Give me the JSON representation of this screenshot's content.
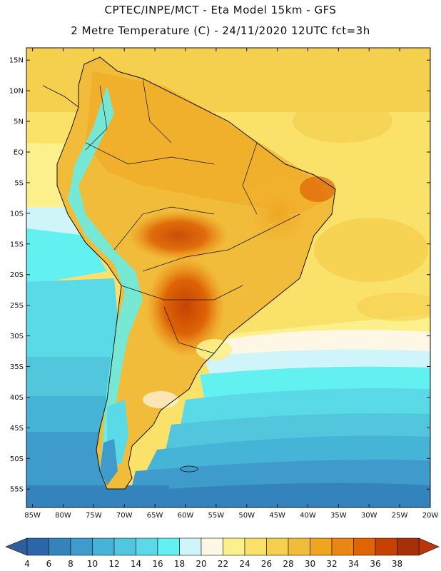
{
  "header": {
    "line1": "CPTEC/INPE/MCT  -   Eta Model 15km  -  GFS",
    "line2": "2 Metre Temperature (C)  -  24/11/2020 12UTC fct=3h"
  },
  "map": {
    "lon_range": [
      -86,
      -20
    ],
    "lat_range": [
      -58,
      17
    ],
    "lat_ticks": [
      {
        "lat": 15,
        "label": "15N"
      },
      {
        "lat": 10,
        "label": "10N"
      },
      {
        "lat": 5,
        "label": "5N"
      },
      {
        "lat": 0,
        "label": "EQ"
      },
      {
        "lat": -5,
        "label": "5S"
      },
      {
        "lat": -10,
        "label": "10S"
      },
      {
        "lat": -15,
        "label": "15S"
      },
      {
        "lat": -20,
        "label": "20S"
      },
      {
        "lat": -25,
        "label": "25S"
      },
      {
        "lat": -30,
        "label": "30S"
      },
      {
        "lat": -35,
        "label": "35S"
      },
      {
        "lat": -40,
        "label": "40S"
      },
      {
        "lat": -45,
        "label": "45S"
      },
      {
        "lat": -50,
        "label": "50S"
      },
      {
        "lat": -55,
        "label": "55S"
      }
    ],
    "lon_ticks": [
      {
        "lon": -85,
        "label": "85W"
      },
      {
        "lon": -80,
        "label": "80W"
      },
      {
        "lon": -75,
        "label": "75W"
      },
      {
        "lon": -70,
        "label": "70W"
      },
      {
        "lon": -65,
        "label": "65W"
      },
      {
        "lon": -60,
        "label": "60W"
      },
      {
        "lon": -55,
        "label": "55W"
      },
      {
        "lon": -50,
        "label": "50W"
      },
      {
        "lon": -45,
        "label": "45W"
      },
      {
        "lon": -40,
        "label": "40W"
      },
      {
        "lon": -35,
        "label": "35W"
      },
      {
        "lon": -30,
        "label": "30W"
      },
      {
        "lon": -25,
        "label": "25W"
      },
      {
        "lon": -20,
        "label": "20W"
      }
    ]
  },
  "colorbar": {
    "levels": [
      "4",
      "6",
      "8",
      "10",
      "12",
      "14",
      "16",
      "18",
      "20",
      "22",
      "24",
      "26",
      "28",
      "30",
      "32",
      "34",
      "36",
      "38"
    ],
    "colors": [
      "#2b66a8",
      "#3384bd",
      "#3f9bcc",
      "#46b4d6",
      "#52c6dd",
      "#5ad9e6",
      "#62f0f0",
      "#cff4fa",
      "#fff7e6",
      "#fbf08c",
      "#f9e16a",
      "#f5cf4e",
      "#f1bc3a",
      "#f0a521",
      "#ea8614",
      "#de6406",
      "#c64204",
      "#a83008"
    ],
    "under_color": "#2e5f9c",
    "over_color": "#b8360a"
  }
}
